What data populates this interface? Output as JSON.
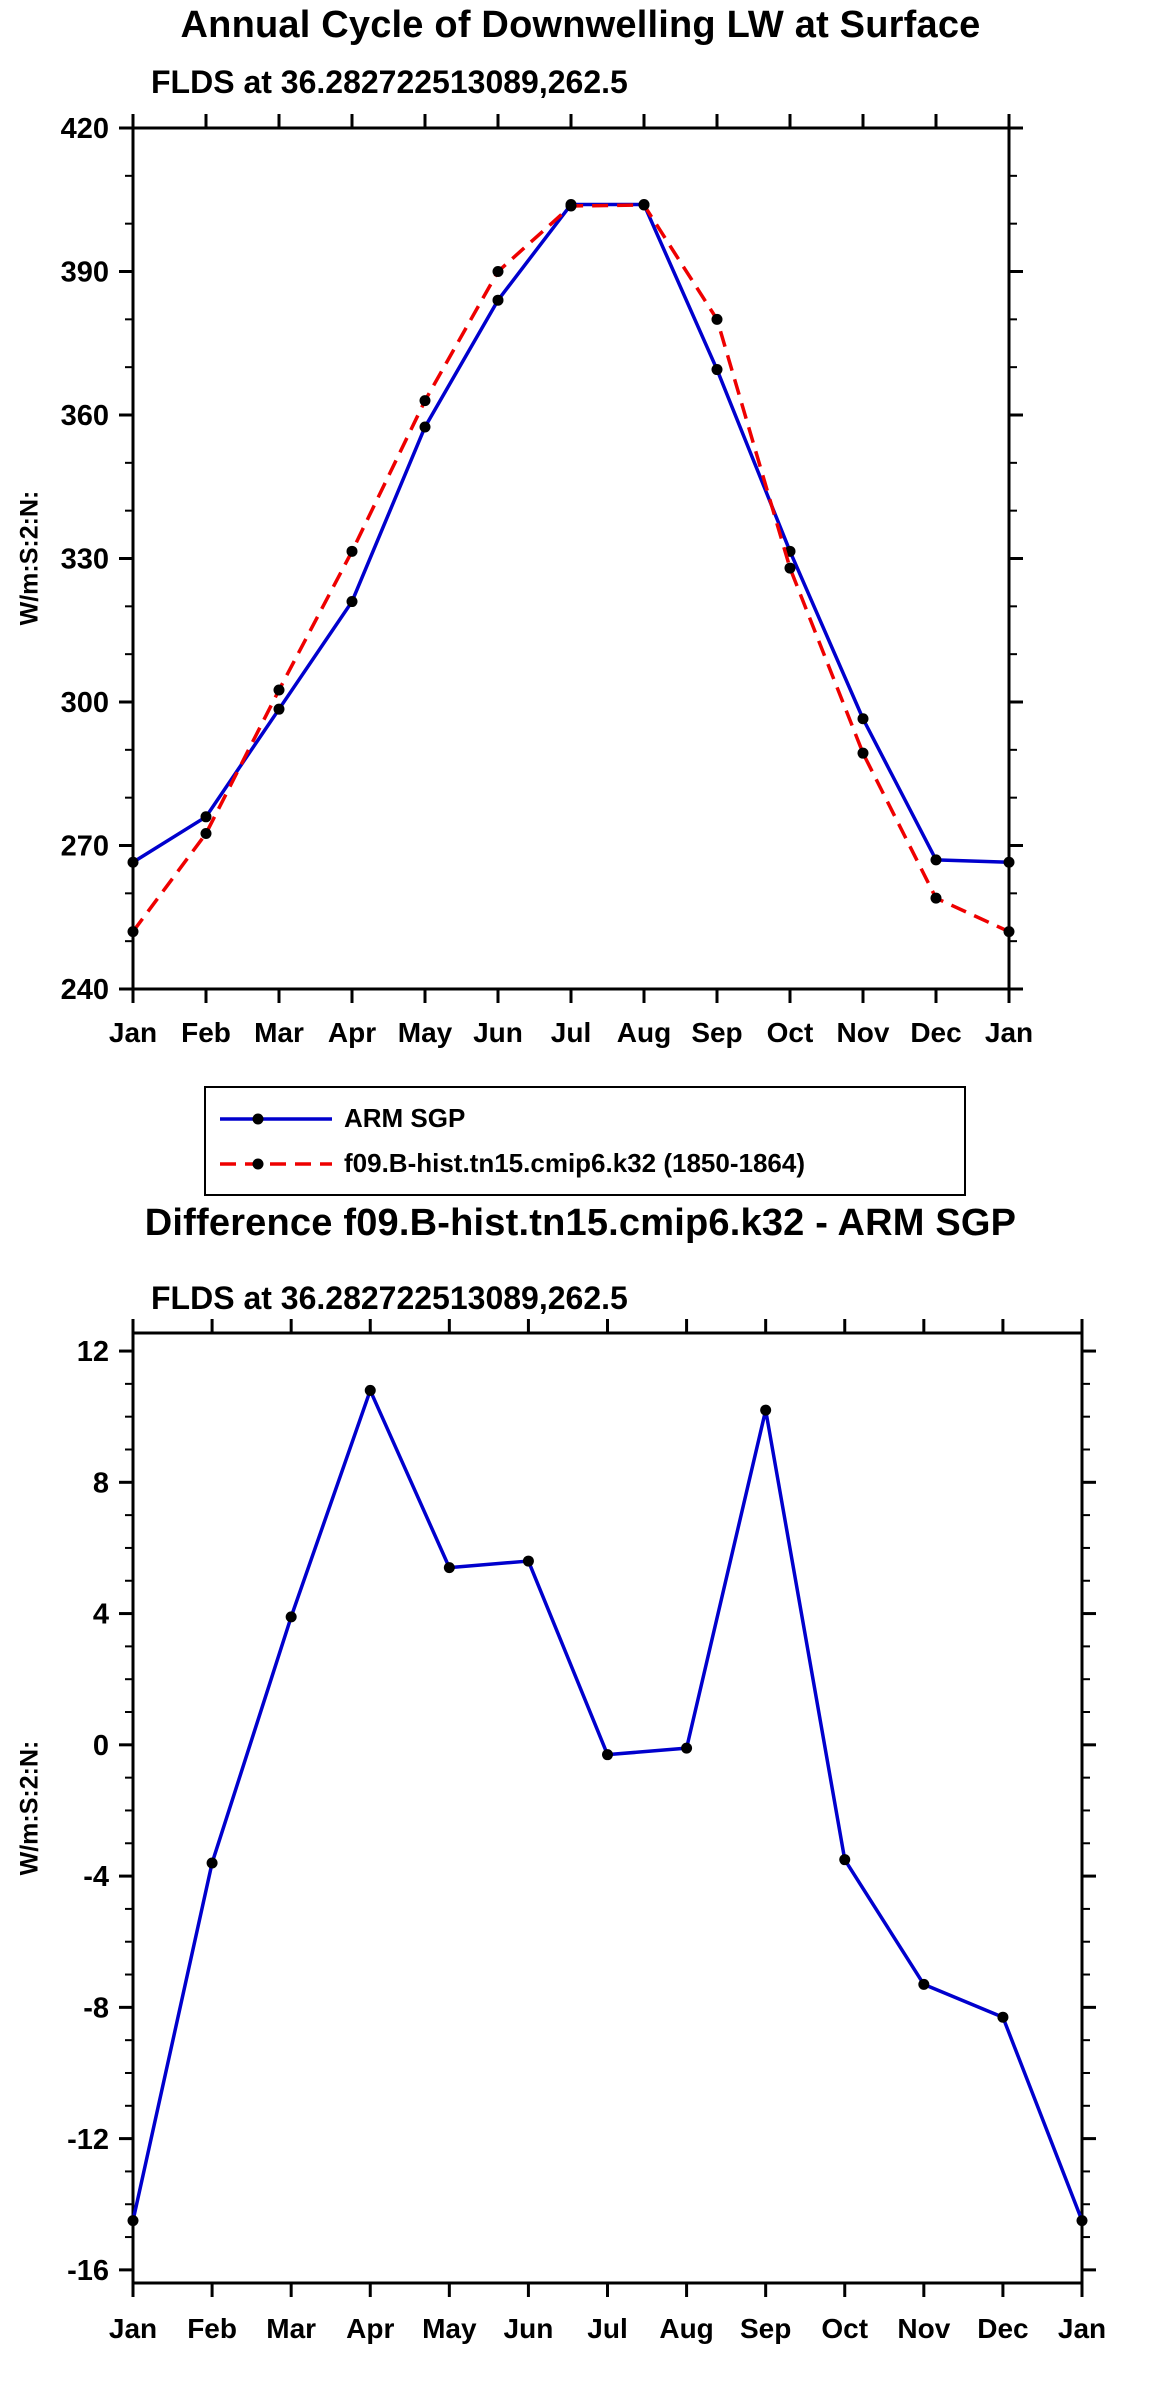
{
  "chart_data": [
    {
      "type": "line",
      "title": "Annual Cycle of Downwelling LW at Surface",
      "subtitle": "FLDS at 36.282722513089,262.5",
      "ylabel": "W/m:S:2:N:",
      "categories": [
        "Jan",
        "Feb",
        "Mar",
        "Apr",
        "May",
        "Jun",
        "Jul",
        "Aug",
        "Sep",
        "Oct",
        "Nov",
        "Dec",
        "Jan"
      ],
      "ylim": [
        240,
        420
      ],
      "ytick_step": 30,
      "ytick_minor_step": 10,
      "grid": false,
      "legend_position": "below-plot",
      "marker": {
        "shape": "circle",
        "color": "#000000"
      },
      "series": [
        {
          "name": "ARM SGP",
          "color": "#0000CD",
          "line_style": "solid",
          "values": [
            266.5,
            276,
            298.5,
            321,
            357.5,
            384,
            404,
            404,
            369.5,
            331.5,
            296.5,
            267,
            266.5
          ]
        },
        {
          "name": "f09.B-hist.tn15.cmip6.k32 (1850-1864)",
          "color": "#EE0000",
          "line_style": "dashed",
          "values": [
            252,
            272.5,
            302.5,
            331.5,
            363,
            390,
            403.7,
            403.9,
            380,
            328,
            289.3,
            259,
            252
          ]
        }
      ]
    },
    {
      "type": "line",
      "title": "Difference f09.B-hist.tn15.cmip6.k32 - ARM SGP",
      "subtitle": "FLDS at 36.282722513089,262.5",
      "ylabel": "W/m:S:2:N:",
      "categories": [
        "Jan",
        "Feb",
        "Mar",
        "Apr",
        "May",
        "Jun",
        "Jul",
        "Aug",
        "Sep",
        "Oct",
        "Nov",
        "Dec",
        "Jan"
      ],
      "ylim": [
        -16,
        12
      ],
      "ytick_step": 4,
      "ytick_minor_step": 1,
      "grid": false,
      "legend_position": "none",
      "marker": {
        "shape": "circle",
        "color": "#000000"
      },
      "series": [
        {
          "name": "f09.B-hist.tn15.cmip6.k32 - ARM SGP",
          "color": "#0000CD",
          "line_style": "solid",
          "values": [
            -14.5,
            -3.6,
            3.9,
            10.8,
            5.4,
            5.6,
            -0.3,
            -0.1,
            10.2,
            -3.5,
            -7.3,
            -8.3,
            -14.5
          ]
        }
      ]
    }
  ]
}
